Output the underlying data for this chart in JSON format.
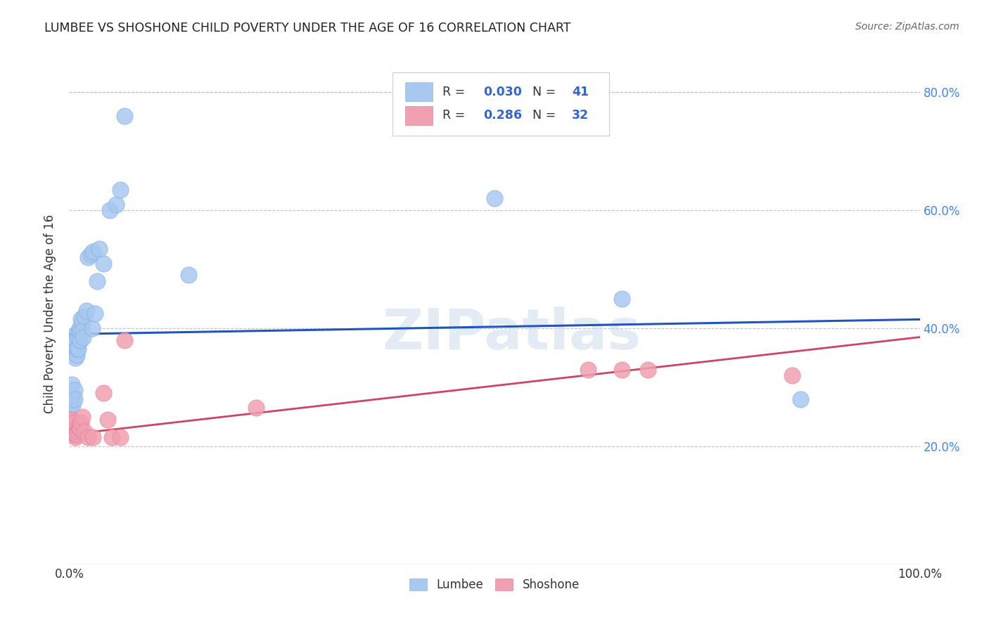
{
  "title": "LUMBEE VS SHOSHONE CHILD POVERTY UNDER THE AGE OF 16 CORRELATION CHART",
  "source": "Source: ZipAtlas.com",
  "ylabel": "Child Poverty Under the Age of 16",
  "xlim": [
    0,
    1.0
  ],
  "ylim": [
    0,
    0.85
  ],
  "xticks": [
    0.0,
    0.1,
    0.2,
    0.3,
    0.4,
    0.5,
    0.6,
    0.7,
    0.8,
    0.9,
    1.0
  ],
  "xticklabels": [
    "0.0%",
    "",
    "",
    "",
    "",
    "",
    "",
    "",
    "",
    "",
    "100.0%"
  ],
  "yticks": [
    0.0,
    0.2,
    0.4,
    0.6,
    0.8
  ],
  "yticklabels": [
    "",
    "20.0%",
    "40.0%",
    "60.0%",
    "80.0%"
  ],
  "blue_color": "#A8C8F0",
  "pink_color": "#F0A0B0",
  "blue_line_color": "#2255BB",
  "pink_line_color": "#CC4466",
  "watermark": "ZIPatlas",
  "background_color": "#ffffff",
  "grid_color": "#bbbbcc",
  "lumbee_x": [
    0.001,
    0.002,
    0.003,
    0.004,
    0.005,
    0.006,
    0.006,
    0.007,
    0.007,
    0.008,
    0.008,
    0.009,
    0.009,
    0.01,
    0.01,
    0.011,
    0.012,
    0.013,
    0.013,
    0.014,
    0.015,
    0.015,
    0.016,
    0.018,
    0.02,
    0.022,
    0.025,
    0.027,
    0.028,
    0.03,
    0.033,
    0.035,
    0.04,
    0.048,
    0.055,
    0.06,
    0.065,
    0.14,
    0.5,
    0.65,
    0.86
  ],
  "lumbee_y": [
    0.27,
    0.285,
    0.305,
    0.27,
    0.285,
    0.295,
    0.28,
    0.35,
    0.37,
    0.39,
    0.38,
    0.355,
    0.365,
    0.385,
    0.365,
    0.395,
    0.4,
    0.38,
    0.395,
    0.415,
    0.41,
    0.395,
    0.385,
    0.42,
    0.43,
    0.52,
    0.525,
    0.4,
    0.53,
    0.425,
    0.48,
    0.535,
    0.51,
    0.6,
    0.61,
    0.635,
    0.76,
    0.49,
    0.62,
    0.45,
    0.28
  ],
  "shoshone_x": [
    0.001,
    0.001,
    0.002,
    0.003,
    0.003,
    0.004,
    0.004,
    0.005,
    0.006,
    0.007,
    0.007,
    0.008,
    0.009,
    0.01,
    0.011,
    0.012,
    0.013,
    0.014,
    0.015,
    0.018,
    0.022,
    0.028,
    0.04,
    0.045,
    0.05,
    0.06,
    0.065,
    0.22,
    0.61,
    0.65,
    0.68,
    0.85
  ],
  "shoshone_y": [
    0.245,
    0.24,
    0.225,
    0.22,
    0.235,
    0.24,
    0.245,
    0.22,
    0.22,
    0.24,
    0.215,
    0.22,
    0.22,
    0.225,
    0.235,
    0.23,
    0.23,
    0.24,
    0.25,
    0.225,
    0.215,
    0.215,
    0.29,
    0.245,
    0.215,
    0.215,
    0.38,
    0.265,
    0.33,
    0.33,
    0.33,
    0.32
  ],
  "blue_line_x0": 0.0,
  "blue_line_x1": 1.0,
  "blue_line_y0": 0.39,
  "blue_line_y1": 0.415,
  "pink_line_x0": 0.0,
  "pink_line_x1": 1.0,
  "pink_line_y0": 0.22,
  "pink_line_y1": 0.385
}
